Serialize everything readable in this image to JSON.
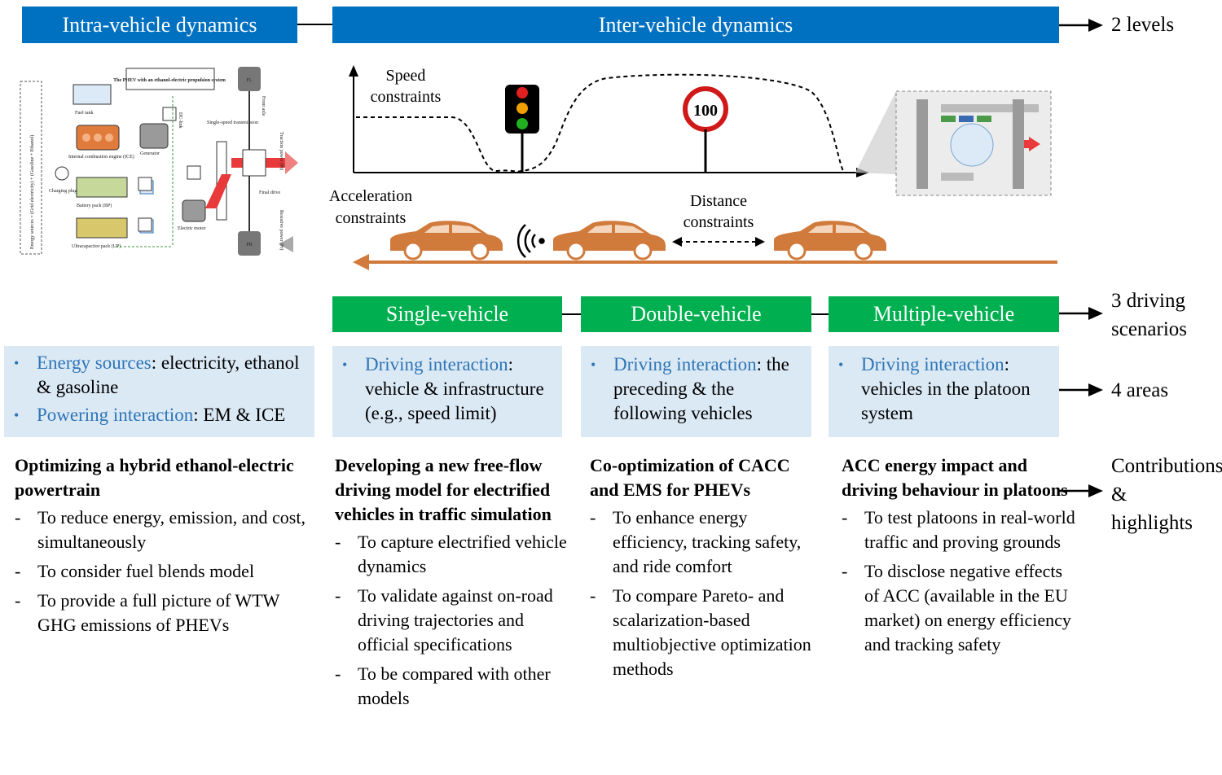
{
  "levels": {
    "intra_label": "Intra-vehicle dynamics",
    "inter_label": "Inter-vehicle dynamics",
    "side_label": "2 levels"
  },
  "powertrain_schematic": {
    "title": "The PHEV with an ethanol-electric propulsion system",
    "energy_sources": "Energy sources = (Grid electricity) + (Gasoline + Ethanol)",
    "fuel_tank": "Fuel tank",
    "ice": "Internal combustion engine (ICE)",
    "generator": "Generator",
    "charging_plug": "Charging plug",
    "battery": "Battery pack (BP)",
    "ultracap": "Ultracapacitor pack (UP)",
    "dc_link": "DC-link",
    "electric_motor": "Electric motor",
    "transmission": "Single-speed transmission",
    "front_axle": "Front axle",
    "final_drive": "Final drive",
    "traction_power": "Traction power (Pt)",
    "resistive_power": "Resistive power (Pr)",
    "wheel_fl": "FL",
    "wheel_fr": "FR"
  },
  "scene": {
    "speed_constraints": "Speed constraints",
    "acceleration_constraints": "Acceleration constraints",
    "distance_constraints": "Distance constraints",
    "speed_limit_sign": "100"
  },
  "scenarios": {
    "items": [
      "Single-vehicle",
      "Double-vehicle",
      "Multiple-vehicle"
    ],
    "side_label": "3 driving scenarios"
  },
  "areas": {
    "side_label": "4 areas",
    "panels": [
      {
        "rows": [
          {
            "hl": "Energy sources",
            "rest": ": electricity, ethanol & gasoline"
          },
          {
            "hl": "Powering interaction",
            "rest": ": EM & ICE"
          }
        ]
      },
      {
        "rows": [
          {
            "hl": "Driving interaction",
            "rest": ": vehicle & infrastructure (e.g., speed limit)"
          }
        ]
      },
      {
        "rows": [
          {
            "hl": "Driving interaction",
            "rest": ": the preceding & the following vehicles"
          }
        ]
      },
      {
        "rows": [
          {
            "hl": "Driving interaction",
            "rest": ": vehicles in the platoon system"
          }
        ]
      }
    ]
  },
  "contributions": {
    "side_label": "Contributions & highlights",
    "columns": [
      {
        "title": "Optimizing a hybrid ethanol-electric powertrain",
        "items": [
          "To reduce energy, emission, and cost, simultaneously",
          "To consider fuel blends model",
          "To provide a full picture of WTW GHG emissions of PHEVs"
        ]
      },
      {
        "title": "Developing a new free-flow driving model for electrified vehicles in traffic simulation",
        "items": [
          "To capture electrified vehicle dynamics",
          "To validate against on-road driving trajectories and official specifications",
          "To be compared with other models"
        ]
      },
      {
        "title": "Co-optimization of CACC and EMS for PHEVs",
        "items": [
          "To enhance energy efficiency, tracking safety, and ride comfort",
          "To compare Pareto- and scalarization-based multiobjective optimization methods"
        ]
      },
      {
        "title": "ACC energy impact and driving behaviour in platoons",
        "items": [
          "To test platoons in real-world traffic and proving grounds",
          "To disclose negative effects of ACC (available in the EU market) on energy efficiency and tracking safety"
        ]
      }
    ]
  },
  "colors": {
    "level_bar": "#0070c0",
    "scenario_bar": "#00b050",
    "panel_bg": "#dbe9f5",
    "highlight_text": "#2e75b6",
    "car": "#d07a3c"
  }
}
